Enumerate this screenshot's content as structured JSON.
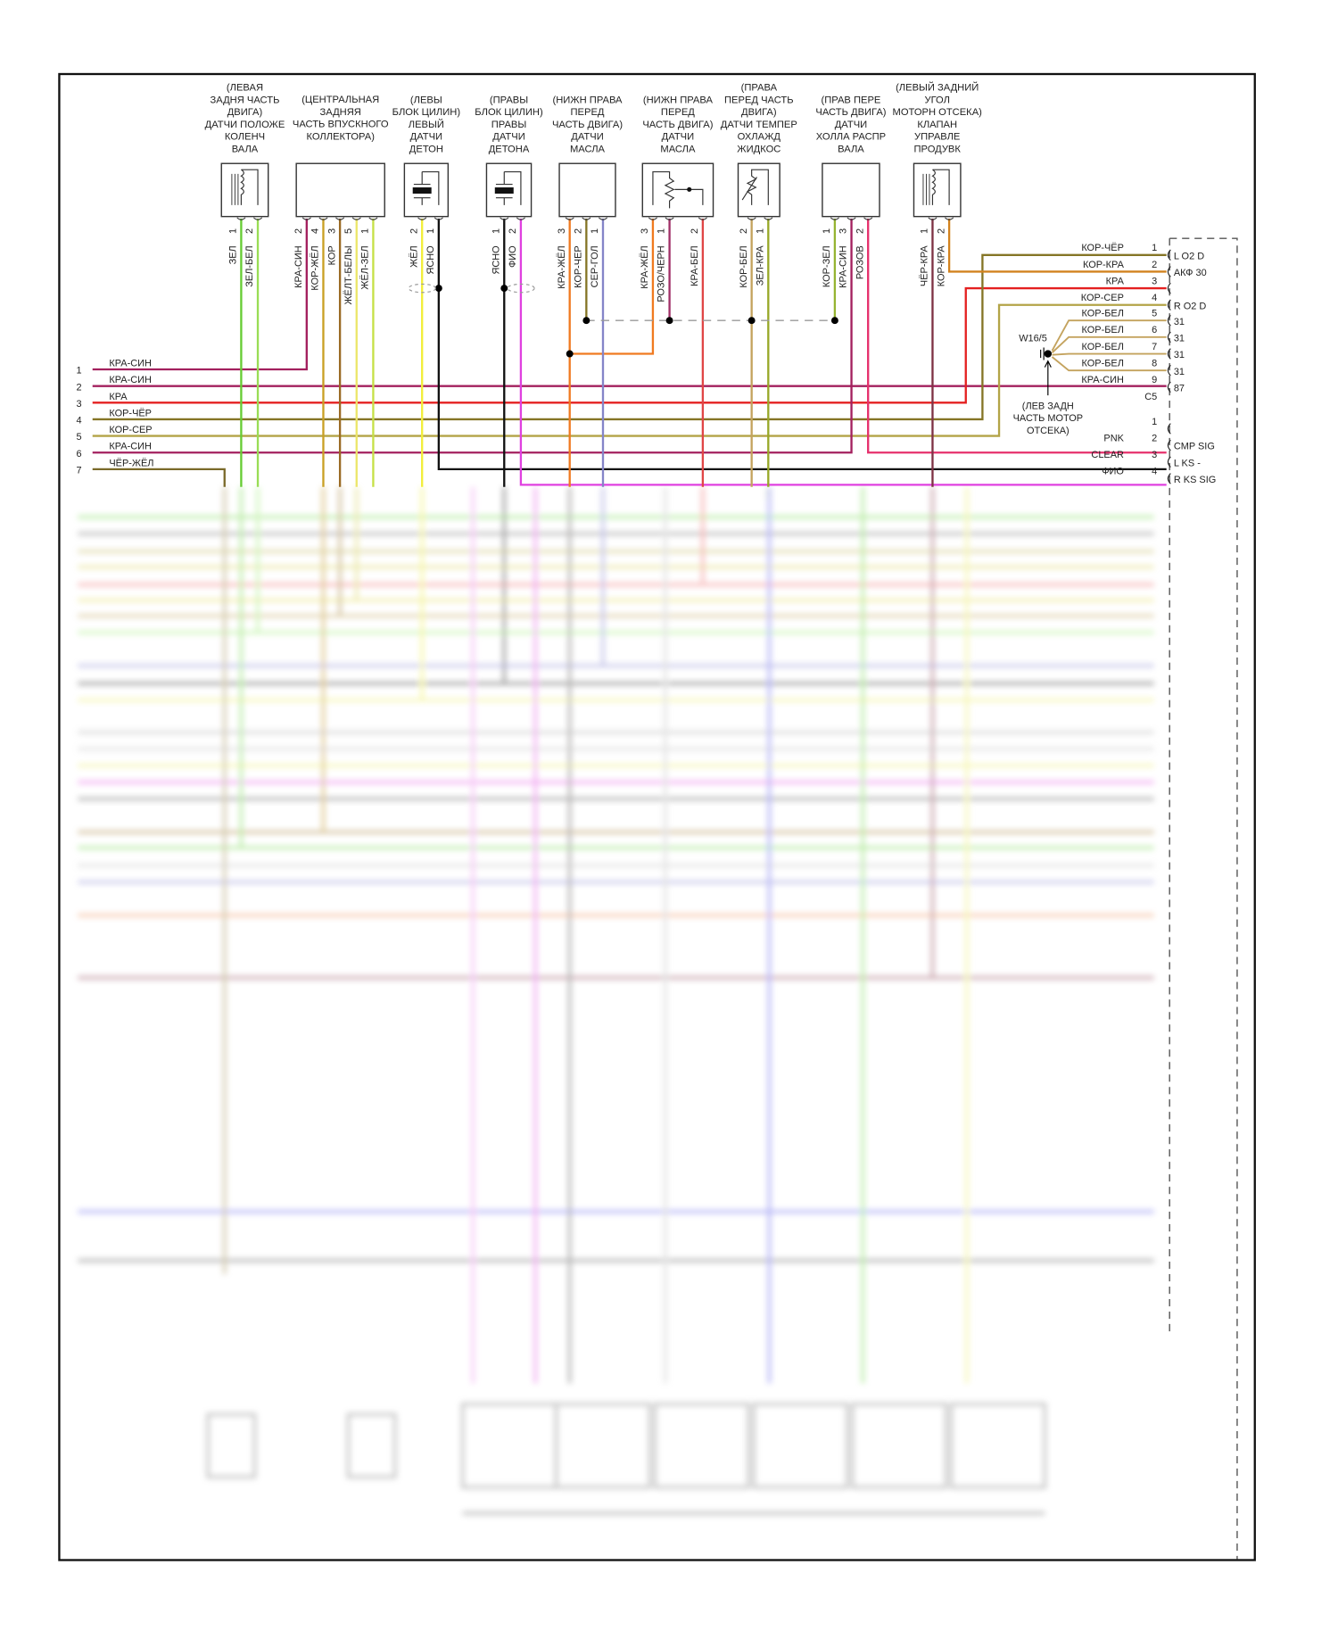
{
  "components": [
    {
      "title_lines": [
        "(ЛЕВАЯ",
        "ЗАДНЯ ЧАСТЬ",
        "ДВИГА)",
        "ДАТЧИ ПОЛОЖЕ",
        "КОЛЕНЧ",
        "ВАЛА"
      ],
      "symbol": "coil",
      "pins": [
        {
          "num": "1",
          "wire": "ЗЕЛ"
        },
        {
          "num": "2",
          "wire": "ЗЕЛ-БЕЛ"
        }
      ]
    },
    {
      "title_lines": [
        "(ЦЕНТРАЛЬНАЯ",
        "ЗАДНЯЯ",
        "ЧАСТЬ ВПУСКНОГО",
        "КОЛЛЕКТОРА)"
      ],
      "symbol": "none",
      "pins": [
        {
          "num": "2",
          "wire": "КРА-СИН"
        },
        {
          "num": "4",
          "wire": "КОР-ЖЁЛ"
        },
        {
          "num": "3",
          "wire": "КОР"
        },
        {
          "num": "5",
          "wire": "ЖЁЛТ-БЕЛЫ"
        },
        {
          "num": "1",
          "wire": "ЖЁЛ-ЗЕЛ"
        }
      ]
    },
    {
      "title_lines": [
        "(ЛЕВЫ",
        "БЛОК ЦИЛИН)",
        "ЛЕВЫЙ",
        "ДАТЧИ",
        "ДЕТОН"
      ],
      "symbol": "piezo",
      "pins": [
        {
          "num": "2",
          "wire": "ЖЁЛ"
        },
        {
          "num": "1",
          "wire": "ЯСНО"
        }
      ]
    },
    {
      "title_lines": [
        "(ПРАВЫ",
        "БЛОК ЦИЛИН)",
        "ПРАВЫ",
        "ДАТЧИ",
        "ДЕТОНА"
      ],
      "symbol": "piezo",
      "pins": [
        {
          "num": "1",
          "wire": "ЯСНО"
        },
        {
          "num": "2",
          "wire": "ФИО"
        }
      ]
    },
    {
      "title_lines": [
        "(НИЖН ПРАВА",
        "ПЕРЕД",
        "ЧАСТЬ ДВИГА)",
        "ДАТЧИ",
        "МАСЛА"
      ],
      "symbol": "none",
      "pins": [
        {
          "num": "3",
          "wire": "КРА-ЖЁЛ"
        },
        {
          "num": "2",
          "wire": "КОР-ЧЕР"
        },
        {
          "num": "1",
          "wire": "СЕР-ГОЛ"
        }
      ]
    },
    {
      "title_lines": [
        "(НИЖН ПРАВА",
        "ПЕРЕД",
        "ЧАСТЬ ДВИГА)",
        "ДАТЧИ",
        "МАСЛА"
      ],
      "symbol": "potentiometer",
      "pins": [
        {
          "num": "3",
          "wire": "КРА-ЖЁЛ"
        },
        {
          "num": "1",
          "wire": "РОЗО/ЧЕРН"
        },
        {
          "num": "2",
          "wire": "КРА-БЕЛ"
        }
      ]
    },
    {
      "title_lines": [
        "(ПРАВА",
        "ПЕРЕД ЧАСТЬ",
        "ДВИГА)",
        "ДАТЧИ ТЕМПЕР",
        "ОХЛАЖД",
        "ЖИДКОС"
      ],
      "symbol": "thermistor",
      "pins": [
        {
          "num": "2",
          "wire": "КОР-БЕЛ"
        },
        {
          "num": "1",
          "wire": "ЗЕЛ-КРА"
        }
      ]
    },
    {
      "title_lines": [
        "(ПРАВ ПЕРЕ",
        "ЧАСТЬ ДВИГА)",
        "ДАТЧИ",
        "ХОЛЛА РАСПР",
        "ВАЛА"
      ],
      "symbol": "none",
      "pins": [
        {
          "num": "1",
          "wire": "КОР-ЗЕЛ"
        },
        {
          "num": "3",
          "wire": "КРА-СИН"
        },
        {
          "num": "2",
          "wire": "РОЗОВ"
        }
      ]
    },
    {
      "title_lines": [
        "(ЛЕВЫЙ ЗАДНИЙ",
        "УГОЛ",
        "МОТОРН ОТСЕКА)",
        "КЛАПАН",
        "УПРАВЛЕ",
        "ПРОДУВК"
      ],
      "symbol": "coil",
      "pins": [
        {
          "num": "1",
          "wire": "ЧЁР-КРА"
        },
        {
          "num": "2",
          "wire": "КОР-КРА"
        }
      ]
    }
  ],
  "left_connector": {
    "pins": [
      {
        "num": "1",
        "wire": "КРА-СИН"
      },
      {
        "num": "2",
        "wire": "КРА-СИН"
      },
      {
        "num": "3",
        "wire": "КРА"
      },
      {
        "num": "4",
        "wire": "КОР-ЧЁР"
      },
      {
        "num": "5",
        "wire": "КОР-СЕР"
      },
      {
        "num": "6",
        "wire": "КРА-СИН"
      },
      {
        "num": "7",
        "wire": "ЧЁР-ЖЁЛ"
      }
    ]
  },
  "c5_connector": {
    "name": "C5",
    "pins": [
      {
        "num": "1",
        "wire": "КОР-ЧЁР",
        "signal": "L O2 D"
      },
      {
        "num": "2",
        "wire": "КОР-КРА",
        "signal": "АКФ 30"
      },
      {
        "num": "3",
        "wire": "КРА",
        "signal": ""
      },
      {
        "num": "4",
        "wire": "КОР-СЕР",
        "signal": "R O2 D"
      },
      {
        "num": "5",
        "wire": "КОР-БЕЛ",
        "signal": "31"
      },
      {
        "num": "6",
        "wire": "КОР-БЕЛ",
        "signal": "31"
      },
      {
        "num": "7",
        "wire": "КОР-БЕЛ",
        "signal": "31"
      },
      {
        "num": "8",
        "wire": "КОР-БЕЛ",
        "signal": "31"
      },
      {
        "num": "9",
        "wire": "КРА-СИН",
        "signal": "87"
      }
    ]
  },
  "second_connector": {
    "pins": [
      {
        "num": "1",
        "wire": "",
        "signal": ""
      },
      {
        "num": "2",
        "wire": "PNK",
        "signal": "CMP SIG"
      },
      {
        "num": "3",
        "wire": "CLEAR",
        "signal": "L KS -"
      },
      {
        "num": "4",
        "wire": "ФИО",
        "signal": "R KS SIG"
      }
    ]
  },
  "ground": {
    "id": "W16/5",
    "location_lines": [
      "(ЛЕВ ЗАДН",
      "ЧАСТЬ МОТОР",
      "ОТСЕКА)"
    ]
  },
  "wire_colors": {
    "ЗЕЛ": "#66cc33",
    "ЗЕЛ-БЕЛ": "#99dd55",
    "КРА-СИН": "#a3205e",
    "КОР-ЖЁЛ": "#c9a024",
    "КОР": "#9a6a24",
    "ЖЁЛТ-БЕЛЫ": "#ece66a",
    "ЖЁЛ-ЗЕЛ": "#c6e046",
    "ЖЁЛ": "#f2ee3a",
    "ЯСНО": "#111111",
    "ФИО": "#e040e0",
    "КРА-ЖЁЛ": "#f07a20",
    "КОР-ЧЕР": "#857526",
    "СЕР-ГОЛ": "#8484c8",
    "РОЗО/ЧЕРН": "#a03068",
    "КРА-БЕЛ": "#e04646",
    "КОР-БЕЛ": "#c4a35e",
    "ЗЕЛ-КРА": "#98a828",
    "КОР-ЗЕЛ": "#96b432",
    "РОЗОВ": "#e6306c",
    "ЧЁР-КРА": "#7e3244",
    "КОР-КРА": "#d2821e",
    "КРА": "#e42020",
    "КОР-ЧЁР": "#857526",
    "КОР-СЕР": "#b3a447",
    "ЧЁР-ЖЁЛ": "#7a6a2a",
    "splice": "#999999"
  }
}
